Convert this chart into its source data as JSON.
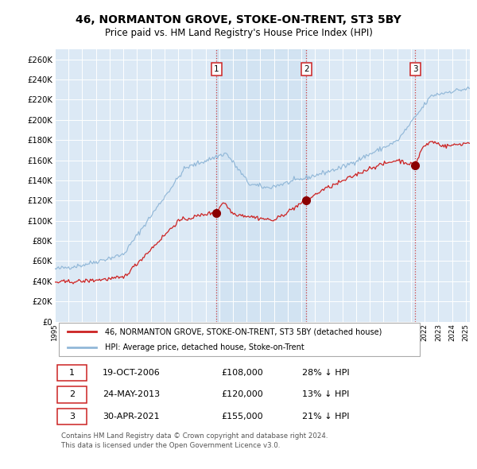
{
  "title": "46, NORMANTON GROVE, STOKE-ON-TRENT, ST3 5BY",
  "subtitle": "Price paid vs. HM Land Registry's House Price Index (HPI)",
  "title_fontsize": 10,
  "subtitle_fontsize": 8.5,
  "bg_color": "#ffffff",
  "plot_bg_color": "#dce9f5",
  "grid_color": "#ffffff",
  "ylabel_ticks": [
    "£0",
    "£20K",
    "£40K",
    "£60K",
    "£80K",
    "£100K",
    "£120K",
    "£140K",
    "£160K",
    "£180K",
    "£200K",
    "£220K",
    "£240K",
    "£260K"
  ],
  "ylabel_vals": [
    0,
    20000,
    40000,
    60000,
    80000,
    100000,
    120000,
    140000,
    160000,
    180000,
    200000,
    220000,
    240000,
    260000
  ],
  "sale1_year": 2006.8,
  "sale1_price": 108000,
  "sale1_label": "1",
  "sale2_year": 2013.37,
  "sale2_price": 120000,
  "sale2_label": "2",
  "sale3_year": 2021.32,
  "sale3_price": 155000,
  "sale3_label": "3",
  "hpi_color": "#92b8d8",
  "price_color": "#cc2222",
  "dot_color": "#8b0000",
  "legend_entries": [
    "46, NORMANTON GROVE, STOKE-ON-TRENT, ST3 5BY (detached house)",
    "HPI: Average price, detached house, Stoke-on-Trent"
  ],
  "table_rows": [
    [
      "1",
      "19-OCT-2006",
      "£108,000",
      "28% ↓ HPI"
    ],
    [
      "2",
      "24-MAY-2013",
      "£120,000",
      "13% ↓ HPI"
    ],
    [
      "3",
      "30-APR-2021",
      "£155,000",
      "21% ↓ HPI"
    ]
  ],
  "footer": "Contains HM Land Registry data © Crown copyright and database right 2024.\nThis data is licensed under the Open Government Licence v3.0.",
  "ylim": [
    0,
    270000
  ],
  "xlim_start": 1995.0,
  "xlim_end": 2025.3
}
